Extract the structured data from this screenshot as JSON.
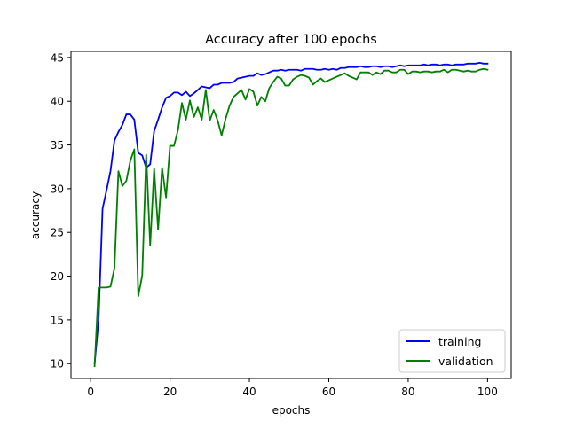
{
  "chart_data": {
    "type": "line",
    "title": "Accuracy after 100 epochs",
    "xlabel": "epochs",
    "ylabel": "accuracy",
    "xlim": [
      -4.95,
      105.95
    ],
    "ylim": [
      8.3,
      45.7
    ],
    "xticks": [
      0,
      20,
      40,
      60,
      80,
      100
    ],
    "yticks": [
      10,
      15,
      20,
      25,
      30,
      35,
      40,
      45
    ],
    "grid": false,
    "legend_position": "lower-right",
    "series": [
      {
        "name": "training",
        "color": "#0000ff",
        "x": [
          1,
          2,
          3,
          4,
          5,
          6,
          7,
          8,
          9,
          10,
          11,
          12,
          13,
          14,
          15,
          16,
          17,
          18,
          19,
          20,
          21,
          22,
          23,
          24,
          25,
          26,
          27,
          28,
          29,
          30,
          31,
          32,
          33,
          34,
          35,
          36,
          37,
          38,
          39,
          40,
          41,
          42,
          43,
          44,
          45,
          46,
          47,
          48,
          49,
          50,
          51,
          52,
          53,
          54,
          55,
          56,
          57,
          58,
          59,
          60,
          61,
          62,
          63,
          64,
          65,
          66,
          67,
          68,
          69,
          70,
          71,
          72,
          73,
          74,
          75,
          76,
          77,
          78,
          79,
          80,
          81,
          82,
          83,
          84,
          85,
          86,
          87,
          88,
          89,
          90,
          91,
          92,
          93,
          94,
          95,
          96,
          97,
          98,
          99,
          100
        ],
        "y": [
          10.0,
          14.9,
          27.7,
          29.8,
          32.0,
          35.5,
          36.5,
          37.3,
          38.5,
          38.5,
          37.9,
          34.1,
          33.8,
          32.4,
          32.8,
          36.6,
          37.9,
          39.3,
          40.4,
          40.6,
          41.0,
          41.0,
          40.7,
          41.1,
          40.6,
          40.9,
          41.3,
          41.7,
          41.6,
          41.5,
          41.9,
          41.9,
          42.1,
          42.1,
          42.1,
          42.2,
          42.6,
          42.7,
          42.8,
          42.9,
          42.9,
          43.2,
          43.0,
          43.1,
          43.3,
          43.5,
          43.5,
          43.6,
          43.5,
          43.6,
          43.6,
          43.6,
          43.5,
          43.7,
          43.7,
          43.7,
          43.6,
          43.6,
          43.7,
          43.6,
          43.7,
          43.6,
          43.8,
          43.8,
          43.9,
          43.9,
          43.9,
          44.0,
          43.9,
          43.9,
          44.0,
          44.0,
          43.9,
          44.0,
          44.0,
          43.9,
          44.0,
          44.1,
          44.0,
          44.1,
          44.1,
          44.1,
          44.1,
          44.2,
          44.1,
          44.2,
          44.2,
          44.1,
          44.2,
          44.2,
          44.1,
          44.2,
          44.2,
          44.2,
          44.3,
          44.3,
          44.3,
          44.4,
          44.3,
          44.3
        ]
      },
      {
        "name": "validation",
        "color": "#008000",
        "x": [
          1,
          2,
          3,
          4,
          5,
          6,
          7,
          8,
          9,
          10,
          11,
          12,
          13,
          14,
          15,
          16,
          17,
          18,
          19,
          20,
          21,
          22,
          23,
          24,
          25,
          26,
          27,
          28,
          29,
          30,
          31,
          32,
          33,
          34,
          35,
          36,
          37,
          38,
          39,
          40,
          41,
          42,
          43,
          44,
          45,
          46,
          47,
          48,
          49,
          50,
          51,
          52,
          53,
          54,
          55,
          56,
          57,
          58,
          59,
          60,
          61,
          62,
          63,
          64,
          65,
          66,
          67,
          68,
          69,
          70,
          71,
          72,
          73,
          74,
          75,
          76,
          77,
          78,
          79,
          80,
          81,
          82,
          83,
          84,
          85,
          86,
          87,
          88,
          89,
          90,
          91,
          92,
          93,
          94,
          95,
          96,
          97,
          98,
          99,
          100
        ],
        "y": [
          9.7,
          18.7,
          18.7,
          18.7,
          18.8,
          20.9,
          32.0,
          30.3,
          30.9,
          33.2,
          34.5,
          17.7,
          20.1,
          33.9,
          23.5,
          32.3,
          25.3,
          32.4,
          29.0,
          34.9,
          34.9,
          36.7,
          39.8,
          37.9,
          40.1,
          38.2,
          39.3,
          37.9,
          41.3,
          37.8,
          39.0,
          37.8,
          36.1,
          38.0,
          39.5,
          40.5,
          40.9,
          41.3,
          40.2,
          41.4,
          41.1,
          39.5,
          40.5,
          40.0,
          41.5,
          42.2,
          42.8,
          42.6,
          41.8,
          41.8,
          42.5,
          42.8,
          43.0,
          42.9,
          42.7,
          41.9,
          42.3,
          42.6,
          42.2,
          42.4,
          42.6,
          42.8,
          43.0,
          43.2,
          42.9,
          42.7,
          42.5,
          43.3,
          43.3,
          43.3,
          43.0,
          43.3,
          43.1,
          43.5,
          43.5,
          43.3,
          43.3,
          43.6,
          43.6,
          43.1,
          43.4,
          43.4,
          43.3,
          43.4,
          43.4,
          43.3,
          43.4,
          43.4,
          43.6,
          43.3,
          43.6,
          43.6,
          43.5,
          43.4,
          43.5,
          43.4,
          43.4,
          43.6,
          43.7,
          43.6
        ]
      }
    ]
  }
}
